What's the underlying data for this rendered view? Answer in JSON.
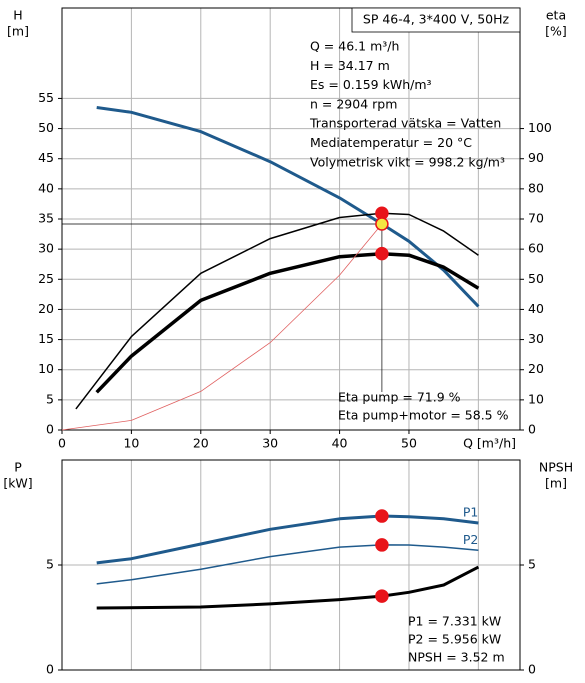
{
  "chart_data": [
    {
      "type": "line",
      "title": "SP 46-4, 3*400 V, 50Hz",
      "ylabel": {
        "symbol": "H",
        "unit": "[m]"
      },
      "y2label": {
        "symbol": "eta",
        "unit": "[%]"
      },
      "xlabel": "Q [m³/h]",
      "info": [
        "Q = 46.1 m³/h",
        "H = 34.17 m",
        "Es = 0.159 kWh/m³",
        "n = 2904 rpm",
        "Transporterad vätska = Vatten",
        "Mediatemperatur = 20 °C",
        "Volymetrisk vikt = 998.2 kg/m³"
      ],
      "annotations": [
        "Eta pump = 71.9 %",
        "Eta pump+motor = 58.5 %"
      ],
      "xlim": [
        0,
        66
      ],
      "xticks": [
        0,
        10,
        20,
        30,
        40,
        50
      ],
      "xgrid": [
        10,
        20,
        30,
        40,
        50,
        60
      ],
      "ylim": [
        0,
        70
      ],
      "yticks": [
        0,
        5,
        10,
        15,
        20,
        25,
        30,
        35,
        40,
        45,
        50,
        55
      ],
      "y2lim": [
        0,
        140
      ],
      "y2ticks": [
        0,
        10,
        20,
        30,
        40,
        50,
        60,
        70,
        80,
        90,
        100
      ],
      "grid": true,
      "series": [
        {
          "color": "#1f5a8c",
          "width": 3,
          "x": [
            5,
            10,
            20,
            30,
            40,
            46.1,
            50,
            55,
            60
          ],
          "values": [
            53.5,
            52.7,
            49.5,
            44.5,
            38.5,
            34.17,
            31.3,
            26.5,
            20.5
          ]
        },
        {
          "color": "#000000",
          "width": 1.5,
          "axis": "y2",
          "x": [
            2,
            5,
            10,
            20,
            30,
            40,
            46.1,
            50,
            55,
            60
          ],
          "values": [
            7,
            16,
            31,
            52,
            63.5,
            70.5,
            71.9,
            71.5,
            66,
            58
          ]
        },
        {
          "color": "#000000",
          "width": 3.5,
          "axis": "y2",
          "x": [
            5,
            10,
            20,
            30,
            40,
            46.1,
            50,
            55,
            60
          ],
          "values": [
            12.5,
            24.5,
            43,
            52,
            57.5,
            58.5,
            58,
            54,
            47
          ]
        },
        {
          "color": "#e06060",
          "width": 0.8,
          "x": [
            0,
            10,
            20,
            30,
            40,
            46.1
          ],
          "values": [
            0,
            1.6,
            6.4,
            14.5,
            25.7,
            34.17
          ]
        }
      ],
      "points": [
        {
          "x": 46.1,
          "y": 71.9,
          "axis": "y2",
          "color": "#e8141a"
        },
        {
          "x": 46.1,
          "y": 58.5,
          "axis": "y2",
          "color": "#e8141a"
        },
        {
          "x": 46.1,
          "y": 34.17,
          "color": "#f5e642"
        }
      ]
    },
    {
      "type": "line",
      "ylabel": {
        "symbol": "P",
        "unit": "[kW]"
      },
      "y2label": {
        "symbol": "NPSH",
        "unit": "[m]"
      },
      "annotations": [
        "P1 = 7.331 kW",
        "P2 = 5.956 kW",
        "NPSH = 3.52 m"
      ],
      "xlim": [
        0,
        66
      ],
      "xgrid": [
        10,
        20,
        30,
        40,
        50,
        60
      ],
      "ylim": [
        0,
        10
      ],
      "yticks": [
        0,
        5
      ],
      "y2lim": [
        0,
        10
      ],
      "y2ticks": [
        0,
        5
      ],
      "grid": true,
      "series": [
        {
          "name": "P1",
          "color": "#1f5a8c",
          "width": 3,
          "x": [
            5,
            10,
            20,
            30,
            40,
            46.1,
            50,
            55,
            60
          ],
          "values": [
            5.1,
            5.3,
            6.0,
            6.7,
            7.2,
            7.331,
            7.3,
            7.2,
            7.0
          ]
        },
        {
          "name": "P2",
          "color": "#1f5a8c",
          "width": 1.5,
          "x": [
            5,
            10,
            20,
            30,
            40,
            46.1,
            50,
            55,
            60
          ],
          "values": [
            4.1,
            4.3,
            4.8,
            5.4,
            5.85,
            5.956,
            5.95,
            5.85,
            5.7
          ]
        },
        {
          "color": "#000000",
          "width": 3,
          "axis": "y2",
          "x": [
            5,
            20,
            30,
            40,
            46.1,
            50,
            55,
            60
          ],
          "values": [
            2.95,
            3.0,
            3.15,
            3.35,
            3.52,
            3.7,
            4.05,
            4.9
          ]
        }
      ],
      "points": [
        {
          "x": 46.1,
          "y": 7.331,
          "color": "#e8141a"
        },
        {
          "x": 46.1,
          "y": 5.956,
          "color": "#e8141a"
        },
        {
          "x": 46.1,
          "y": 3.52,
          "axis": "y2",
          "color": "#e8141a"
        }
      ]
    }
  ]
}
